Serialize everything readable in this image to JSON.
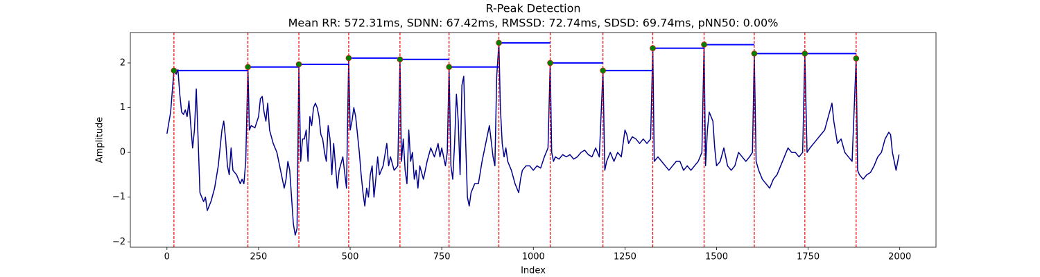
{
  "chart_data": {
    "type": "line",
    "title": "R-Peak Detection",
    "subtitle": "Mean RR: 572.31ms, SDNN: 67.42ms, RMSSD: 72.74ms, SDSD: 69.74ms, pNN50: 0.00%",
    "xlabel": "Index",
    "ylabel": "Amplitude",
    "xlim": [
      -99.95,
      2098.95
    ],
    "ylim": [
      -2.12,
      2.68
    ],
    "xticks": [
      0,
      250,
      500,
      750,
      1000,
      1250,
      1500,
      1750,
      2000
    ],
    "yticks": [
      {
        "value": -2,
        "label": "−2"
      },
      {
        "value": -1,
        "label": "−1"
      },
      0,
      1,
      2
    ],
    "x": [
      0,
      10,
      19,
      25,
      30,
      35,
      40,
      45,
      50,
      55,
      60,
      65,
      70,
      75,
      80,
      85,
      90,
      95,
      100,
      105,
      110,
      115,
      120,
      130,
      140,
      150,
      155,
      160,
      165,
      170,
      175,
      180,
      190,
      200,
      205,
      210,
      215,
      221,
      225,
      230,
      240,
      250,
      255,
      260,
      265,
      270,
      275,
      280,
      290,
      300,
      310,
      320,
      325,
      330,
      335,
      340,
      345,
      350,
      355,
      360,
      365,
      370,
      375,
      380,
      385,
      390,
      395,
      400,
      405,
      410,
      415,
      420,
      425,
      430,
      435,
      440,
      445,
      450,
      455,
      460,
      465,
      470,
      480,
      490,
      496,
      500,
      505,
      510,
      515,
      520,
      525,
      530,
      535,
      540,
      545,
      550,
      555,
      560,
      565,
      570,
      575,
      580,
      590,
      600,
      605,
      610,
      620,
      630,
      636,
      640,
      645,
      650,
      655,
      660,
      665,
      670,
      675,
      680,
      685,
      690,
      700,
      710,
      720,
      730,
      740,
      745,
      750,
      760,
      765,
      770,
      775,
      780,
      785,
      790,
      795,
      800,
      805,
      810,
      815,
      820,
      825,
      830,
      840,
      850,
      860,
      870,
      880,
      890,
      895,
      900,
      906,
      910,
      915,
      920,
      925,
      930,
      940,
      950,
      960,
      965,
      970,
      980,
      990,
      1000,
      1010,
      1020,
      1030,
      1040,
      1046,
      1050,
      1055,
      1060,
      1070,
      1080,
      1090,
      1100,
      1110,
      1120,
      1130,
      1140,
      1150,
      1160,
      1170,
      1180,
      1190,
      1195,
      1200,
      1210,
      1220,
      1230,
      1240,
      1250,
      1255,
      1260,
      1270,
      1280,
      1290,
      1300,
      1310,
      1320,
      1326,
      1330,
      1340,
      1350,
      1360,
      1370,
      1380,
      1390,
      1400,
      1410,
      1420,
      1430,
      1440,
      1450,
      1460,
      1466,
      1470,
      1475,
      1480,
      1490,
      1495,
      1500,
      1510,
      1520,
      1530,
      1540,
      1550,
      1560,
      1570,
      1580,
      1590,
      1598,
      1603,
      1608,
      1615,
      1625,
      1635,
      1645,
      1655,
      1665,
      1675,
      1685,
      1695,
      1705,
      1715,
      1725,
      1735,
      1741,
      1747,
      1755,
      1765,
      1775,
      1785,
      1795,
      1805,
      1815,
      1820,
      1830,
      1840,
      1850,
      1860,
      1870,
      1881,
      1885,
      1890,
      1900,
      1910,
      1920,
      1930,
      1940,
      1950,
      1960,
      1970,
      1975,
      1980,
      1990,
      1998
    ],
    "series": [
      {
        "color": "#00008b",
        "values": [
          0.42,
          0.9,
          1.83,
          1.75,
          1.85,
          1.3,
          0.9,
          0.85,
          0.95,
          0.8,
          1.15,
          0.6,
          0.1,
          0.5,
          1.42,
          0.3,
          -0.9,
          -1.0,
          -1.1,
          -1.0,
          -1.3,
          -1.2,
          -1.1,
          -0.8,
          -0.3,
          0.5,
          0.7,
          0.3,
          -0.3,
          -0.5,
          0.1,
          -0.4,
          -0.5,
          -0.7,
          -0.6,
          -0.7,
          -0.2,
          1.91,
          0.5,
          0.6,
          0.55,
          0.8,
          1.2,
          1.25,
          0.9,
          0.7,
          1.1,
          0.5,
          0.2,
          0.0,
          -0.4,
          -0.8,
          -0.6,
          -0.2,
          -0.4,
          -1.0,
          -1.6,
          -1.85,
          -1.7,
          1.97,
          -0.2,
          0.3,
          0.3,
          0.5,
          -0.2,
          0.8,
          0.6,
          1.0,
          1.1,
          1.0,
          0.8,
          0.4,
          0.3,
          0.0,
          -0.2,
          0.6,
          0.3,
          -0.5,
          0.2,
          -0.3,
          -0.8,
          -0.4,
          -0.1,
          -0.8,
          2.11,
          0.5,
          0.7,
          1.0,
          0.8,
          0.4,
          0.0,
          -0.5,
          -0.9,
          -1.2,
          -0.8,
          -1.0,
          -0.5,
          -0.3,
          -1.0,
          -0.6,
          -0.1,
          -0.5,
          -0.3,
          0.2,
          -0.3,
          -0.1,
          -0.4,
          -0.3,
          2.08,
          -0.2,
          0.3,
          -0.4,
          -0.7,
          0.5,
          -0.2,
          0.0,
          -0.6,
          -0.4,
          -0.8,
          -0.3,
          -0.6,
          -0.2,
          0.1,
          -0.1,
          0.2,
          -0.1,
          0.1,
          -0.3,
          0.0,
          1.91,
          -0.3,
          -0.6,
          0.2,
          1.3,
          0.7,
          -0.5,
          1.5,
          1.7,
          0.3,
          -1.0,
          -1.2,
          -0.9,
          -0.7,
          -0.7,
          -0.2,
          0.2,
          0.6,
          -0.1,
          -0.3,
          1.7,
          2.45,
          1.0,
          0.2,
          -0.1,
          0.1,
          -0.2,
          -0.4,
          -0.7,
          -0.9,
          -0.6,
          -0.4,
          -0.3,
          -0.3,
          -0.4,
          -0.3,
          -0.35,
          -0.1,
          0.1,
          2.0,
          0.0,
          -0.2,
          -0.1,
          -0.15,
          -0.05,
          -0.1,
          -0.05,
          -0.15,
          -0.1,
          0.0,
          0.05,
          -0.05,
          -0.1,
          0.1,
          -0.1,
          1.83,
          -0.4,
          -0.2,
          0.0,
          -0.2,
          0.0,
          -0.1,
          0.5,
          0.4,
          0.2,
          0.35,
          0.3,
          0.2,
          0.3,
          0.2,
          0.3,
          2.33,
          -0.2,
          -0.1,
          -0.2,
          -0.3,
          -0.4,
          -0.3,
          -0.2,
          -0.2,
          -0.4,
          -0.3,
          -0.4,
          -0.3,
          -0.2,
          0.0,
          2.41,
          -0.3,
          0.5,
          0.9,
          0.7,
          0.1,
          -0.3,
          -0.2,
          0.1,
          -0.3,
          -0.4,
          -0.3,
          0.0,
          -0.1,
          -0.2,
          -0.1,
          0.0,
          2.21,
          -0.2,
          -0.4,
          -0.6,
          -0.7,
          -0.8,
          -0.6,
          -0.5,
          -0.3,
          -0.1,
          0.1,
          0.0,
          0.0,
          -0.1,
          0.0,
          2.21,
          0.0,
          0.1,
          0.2,
          0.3,
          0.4,
          0.5,
          0.8,
          1.1,
          0.7,
          0.2,
          0.3,
          0.0,
          -0.1,
          -0.2,
          2.1,
          -0.4,
          -0.5,
          -0.6,
          -0.5,
          -0.45,
          -0.3,
          -0.1,
          0.0,
          0.3,
          0.45,
          0.4,
          0.0,
          -0.4,
          -0.05
        ]
      }
    ],
    "peaks": {
      "x": [
        19,
        221,
        360,
        496,
        636,
        770,
        906,
        1046,
        1190,
        1326,
        1466,
        1603,
        1741,
        1881
      ],
      "values": [
        1.83,
        1.91,
        1.97,
        2.11,
        2.08,
        1.91,
        2.45,
        2.0,
        1.83,
        2.33,
        2.41,
        2.21,
        2.21,
        2.1
      ],
      "color": "green",
      "line_color": "red",
      "rr_color": "blue"
    }
  }
}
